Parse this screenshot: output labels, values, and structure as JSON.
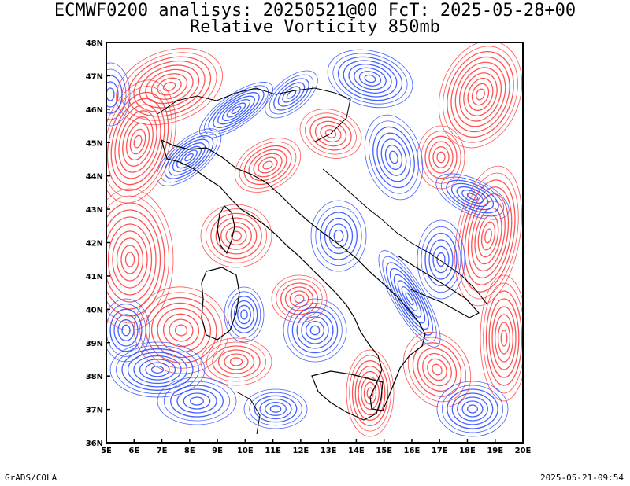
{
  "header": {
    "line1": "ECMWF0200 analisys: 20250521@00 FcT: 2025-05-28+00",
    "line2": "Relative Vorticity 850mb"
  },
  "map": {
    "lon_range": [
      5,
      20
    ],
    "lat_range": [
      36,
      48
    ],
    "lon_ticks": [
      "5E",
      "6E",
      "7E",
      "8E",
      "9E",
      "10E",
      "11E",
      "12E",
      "13E",
      "14E",
      "15E",
      "16E",
      "17E",
      "18E",
      "19E",
      "20E"
    ],
    "lat_ticks": [
      "36N",
      "37N",
      "38N",
      "39N",
      "40N",
      "41N",
      "42N",
      "43N",
      "44N",
      "45N",
      "46N",
      "47N",
      "48N"
    ],
    "colors": {
      "positive": "#ff4040",
      "negative": "#3050ff",
      "coastline": "#000000",
      "background": "#ffffff"
    }
  },
  "footer": {
    "left": "GrADS/COLA",
    "right": "2025-05-21-09:54"
  }
}
